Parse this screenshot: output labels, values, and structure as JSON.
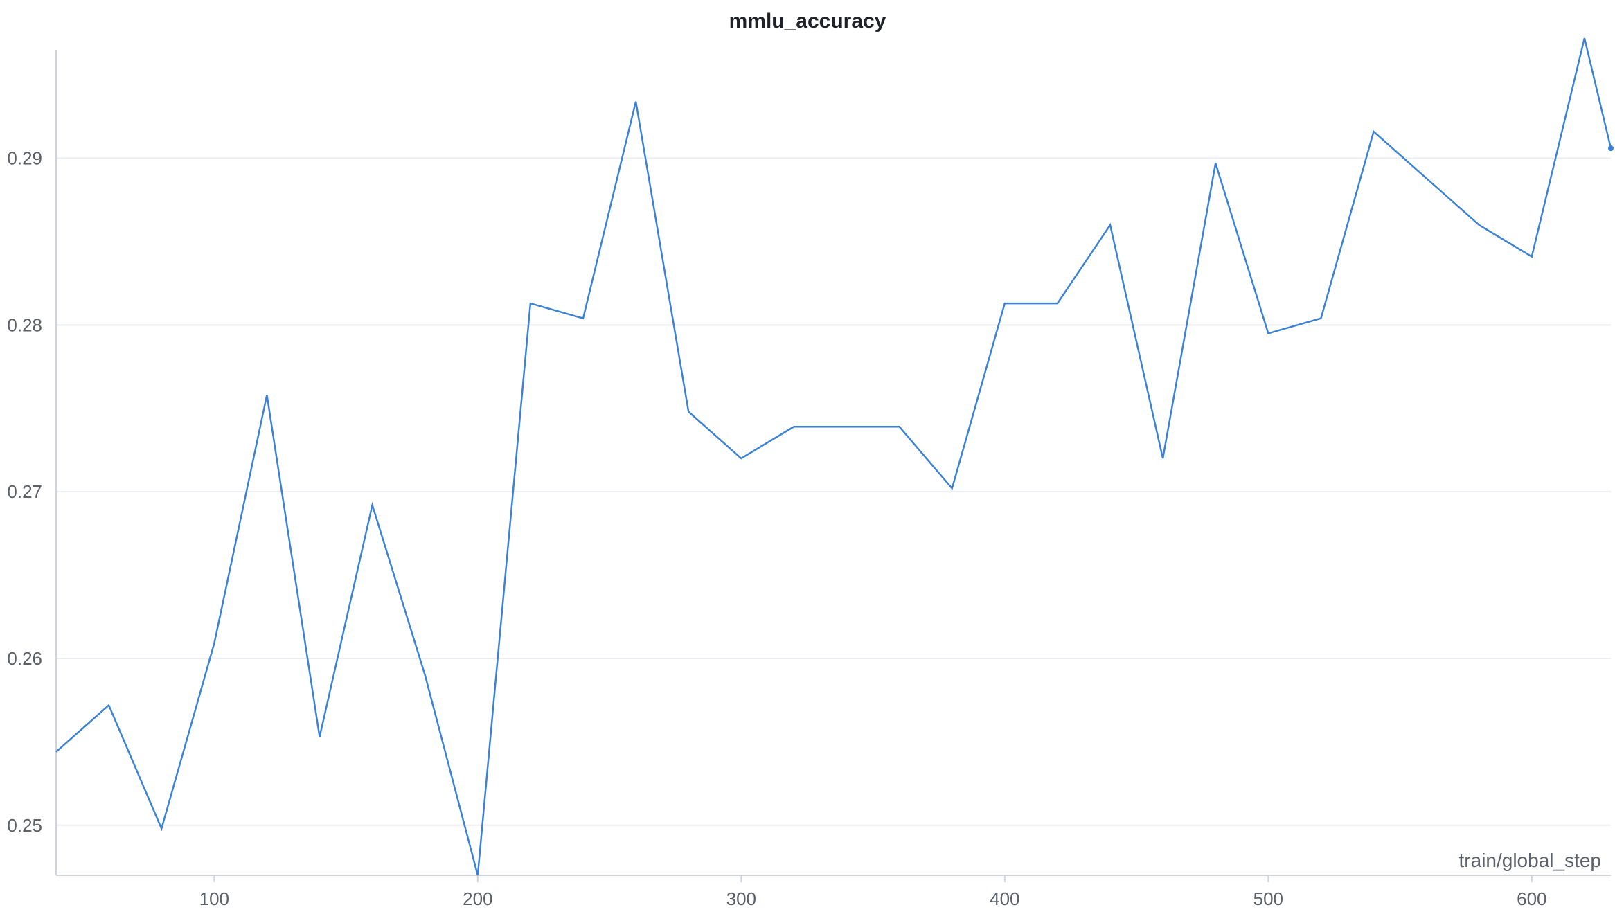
{
  "chart_data": {
    "type": "line",
    "title": "mmlu_accuracy",
    "xlabel": "train/global_step",
    "ylabel": "",
    "xlim": [
      40,
      630
    ],
    "ylim": [
      0.247,
      0.297
    ],
    "xticks": [
      100,
      200,
      300,
      400,
      500,
      600
    ],
    "yticks": [
      0.25,
      0.26,
      0.27,
      0.28,
      0.29
    ],
    "ytick_labels": [
      "0.25",
      "0.26",
      "0.27",
      "0.28",
      "0.29"
    ],
    "grid": true,
    "legend": "none",
    "colors": {
      "line": "#3b82d6",
      "grid": "#ebedf0",
      "axis": "#d0d4d9"
    },
    "series": [
      {
        "x": [
          40,
          60,
          80,
          100,
          120,
          140,
          160,
          180,
          200,
          220,
          240,
          260,
          280,
          300,
          320,
          340,
          360,
          380,
          400,
          420,
          440,
          460,
          480,
          500,
          520,
          540,
          560,
          580,
          600,
          620,
          630
        ],
        "y": [
          0.2544,
          0.2572,
          0.2498,
          0.2609,
          0.2758,
          0.2553,
          0.2692,
          0.259,
          0.247,
          0.2813,
          0.2804,
          0.2934,
          0.2748,
          0.272,
          0.2739,
          0.2739,
          0.2739,
          0.2702,
          0.2813,
          0.2813,
          0.286,
          0.272,
          0.2897,
          0.2795,
          0.2804,
          0.2916,
          0.2888,
          0.286,
          0.2841,
          0.2972,
          0.2906
        ]
      }
    ]
  }
}
